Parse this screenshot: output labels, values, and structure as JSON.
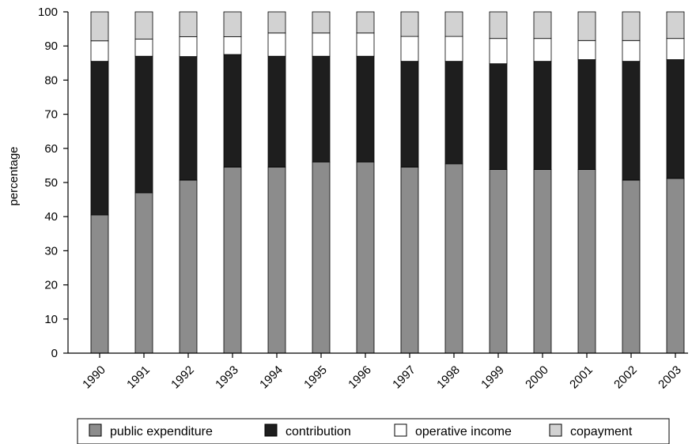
{
  "chart_data": {
    "type": "bar",
    "stacked": true,
    "title": "",
    "xlabel": "",
    "ylabel": "percentage",
    "ylim": [
      0,
      100
    ],
    "yticks": [
      0,
      10,
      20,
      30,
      40,
      50,
      60,
      70,
      80,
      90,
      100
    ],
    "grid": false,
    "legend_position": "bottom",
    "categories": [
      "1990",
      "1991",
      "1992",
      "1993",
      "1994",
      "1995",
      "1996",
      "1997",
      "1998",
      "1999",
      "2000",
      "2001",
      "2002",
      "2003"
    ],
    "series": [
      {
        "name": "public expenditure",
        "color": "#8c8c8c",
        "values": [
          40.5,
          47,
          50.7,
          54.5,
          54.5,
          56,
          56,
          54.5,
          55.5,
          53.8,
          53.8,
          53.8,
          50.7,
          51.2
        ]
      },
      {
        "name": "contribution",
        "color": "#1e1e1e",
        "values": [
          45,
          40,
          36.2,
          33,
          32.5,
          31,
          31,
          31,
          30,
          31,
          31.7,
          32.2,
          34.8,
          34.8
        ]
      },
      {
        "name": "operative income",
        "color": "#ffffff",
        "values": [
          6,
          5,
          5.8,
          5.2,
          6.8,
          6.8,
          6.8,
          7.3,
          7.3,
          7.4,
          6.7,
          5.6,
          6.1,
          6.2
        ]
      },
      {
        "name": "copayment",
        "color": "#d2d2d2",
        "values": [
          8.5,
          8,
          7.3,
          7.3,
          6.2,
          6.2,
          6.2,
          7.2,
          7.2,
          7.8,
          7.8,
          8.4,
          8.4,
          7.8
        ]
      }
    ]
  }
}
